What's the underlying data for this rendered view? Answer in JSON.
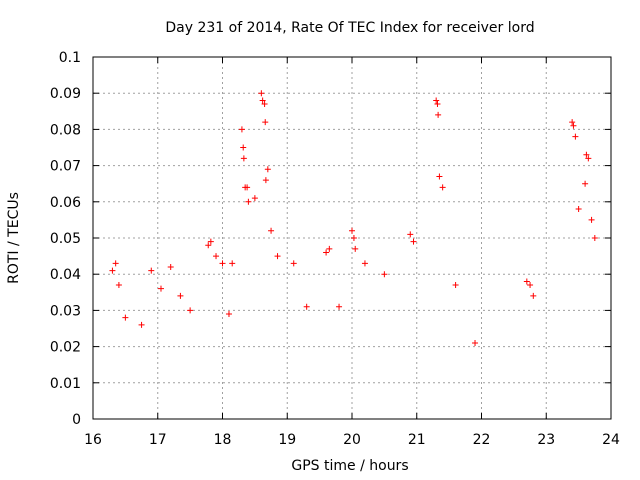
{
  "chart_data": {
    "type": "scatter",
    "title": "Day 231 of 2014, Rate Of TEC Index for receiver lord",
    "xlabel": "GPS time / hours",
    "ylabel": "ROTI / TECUs",
    "xlim": [
      16,
      24
    ],
    "ylim": [
      0,
      0.1
    ],
    "x_ticks": [
      "16",
      "17",
      "18",
      "19",
      "20",
      "21",
      "22",
      "23",
      "24"
    ],
    "y_ticks": [
      "0",
      "0.01",
      "0.02",
      "0.03",
      "0.04",
      "0.05",
      "0.06",
      "0.07",
      "0.08",
      "0.09",
      "0.1"
    ],
    "grid": true,
    "marker": "+",
    "marker_color": "#ff0000",
    "series": [
      {
        "x": [
          16.3,
          16.35,
          16.4,
          16.5,
          16.75,
          16.9,
          17.05,
          17.2,
          17.35,
          17.5,
          17.78,
          17.82,
          17.9,
          18.0,
          18.1,
          18.15,
          18.3,
          18.32,
          18.33,
          18.35,
          18.38,
          18.4,
          18.5,
          18.6,
          18.62,
          18.65,
          18.66,
          18.67,
          18.7,
          18.75,
          18.85,
          19.1,
          19.3,
          19.6,
          19.65,
          19.8,
          20.0,
          20.03,
          20.05,
          20.2,
          20.5,
          20.9,
          20.95,
          21.3,
          21.32,
          21.33,
          21.35,
          21.4,
          21.6,
          21.9,
          22.7,
          22.75,
          22.8,
          23.4,
          23.42,
          23.45,
          23.5,
          23.6,
          23.62,
          23.65,
          23.7,
          23.75
        ],
        "y": [
          0.041,
          0.043,
          0.037,
          0.028,
          0.026,
          0.041,
          0.036,
          0.042,
          0.034,
          0.03,
          0.048,
          0.049,
          0.045,
          0.043,
          0.029,
          0.043,
          0.08,
          0.075,
          0.072,
          0.064,
          0.064,
          0.06,
          0.061,
          0.09,
          0.088,
          0.087,
          0.082,
          0.066,
          0.069,
          0.052,
          0.045,
          0.043,
          0.031,
          0.046,
          0.047,
          0.031,
          0.052,
          0.05,
          0.047,
          0.043,
          0.04,
          0.051,
          0.049,
          0.088,
          0.087,
          0.084,
          0.067,
          0.064,
          0.037,
          0.021,
          0.038,
          0.037,
          0.034,
          0.082,
          0.081,
          0.078,
          0.058,
          0.065,
          0.073,
          0.072,
          0.055,
          0.05
        ]
      }
    ]
  }
}
